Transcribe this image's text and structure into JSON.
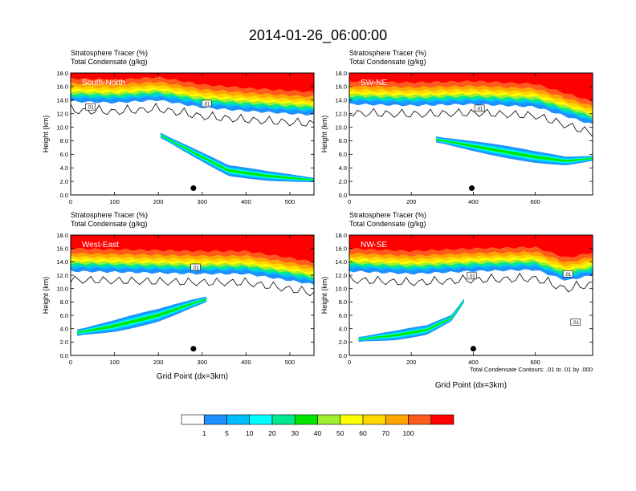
{
  "figure": {
    "title": "2014-01-26_06:00:00",
    "contour_note": "Total Condensate Contours: .01 to .01 by .000"
  },
  "colors": {
    "levels": [
      "#ffffff",
      "#1e90ff",
      "#00bfff",
      "#00ffff",
      "#00e890",
      "#00e600",
      "#a0ee30",
      "#ffff00",
      "#ffd700",
      "#ffa500",
      "#ff5a1e",
      "#ff0000"
    ],
    "contour": "#000000"
  },
  "colorbar": {
    "labels": [
      "1",
      "5",
      "10",
      "20",
      "30",
      "40",
      "50",
      "60",
      "70",
      "100"
    ]
  },
  "chart_data": [
    {
      "type": "heatmap",
      "panel": "South-North",
      "header1": "Stratosphere Tracer   (%)",
      "header2": "Total Condensate   (g/kg)",
      "ylabel": "Height (km)",
      "xlabel": "",
      "xlim": [
        0,
        555
      ],
      "ylim": [
        0,
        18
      ],
      "xticks": [
        0,
        100,
        200,
        300,
        400,
        500
      ],
      "yticks": [
        0,
        2,
        4,
        6,
        8,
        10,
        12,
        14,
        16,
        18
      ],
      "contour_labels": [
        {
          "x": 45,
          "y": 13.0,
          "text": ".01"
        },
        {
          "x": 310,
          "y": 13.5,
          "text": ".01"
        }
      ],
      "marker": {
        "x": 280,
        "y": 1.0
      },
      "plume": [
        {
          "x": 205,
          "y": 8.8
        },
        {
          "x": 300,
          "y": 5.6
        },
        {
          "x": 360,
          "y": 3.6
        },
        {
          "x": 450,
          "y": 2.8
        },
        {
          "x": 555,
          "y": 2.2
        }
      ],
      "plume_width_km": 1.6,
      "tracer_base": [
        {
          "x": 0,
          "y": 14.6
        },
        {
          "x": 100,
          "y": 14.4
        },
        {
          "x": 200,
          "y": 14.8
        },
        {
          "x": 300,
          "y": 13.7
        },
        {
          "x": 400,
          "y": 13.2
        },
        {
          "x": 500,
          "y": 12.8
        },
        {
          "x": 555,
          "y": 12.6
        }
      ]
    },
    {
      "type": "heatmap",
      "panel": "SW-NE",
      "header1": "Stratosphere Tracer   (%)",
      "header2": "Total Condensate   (g/kg)",
      "ylabel": "Height (km)",
      "xlabel": "",
      "xlim": [
        0,
        785
      ],
      "ylim": [
        0,
        18
      ],
      "xticks": [
        0,
        200,
        400,
        600
      ],
      "yticks": [
        0,
        2,
        4,
        6,
        8,
        10,
        12,
        14,
        16,
        18
      ],
      "contour_labels": [
        {
          "x": 420,
          "y": 12.8,
          "text": ".01"
        }
      ],
      "marker": {
        "x": 395,
        "y": 1.0
      },
      "plume": [
        {
          "x": 280,
          "y": 8.2
        },
        {
          "x": 450,
          "y": 6.8
        },
        {
          "x": 600,
          "y": 5.6
        },
        {
          "x": 700,
          "y": 5.0
        },
        {
          "x": 785,
          "y": 5.4
        }
      ],
      "plume_width_km": 1.8,
      "tracer_base": [
        {
          "x": 0,
          "y": 14.2
        },
        {
          "x": 200,
          "y": 14.0
        },
        {
          "x": 400,
          "y": 14.2
        },
        {
          "x": 600,
          "y": 13.8
        },
        {
          "x": 700,
          "y": 12.4
        },
        {
          "x": 785,
          "y": 11.2
        }
      ]
    },
    {
      "type": "heatmap",
      "panel": "West-East",
      "header1": "Stratosphere Tracer   (%)",
      "header2": "Total Condensate   (g/kg)",
      "ylabel": "Height (km)",
      "xlabel": "Grid Point (dx=3km)",
      "xlim": [
        0,
        555
      ],
      "ylim": [
        0,
        18
      ],
      "xticks": [
        0,
        100,
        200,
        300,
        400,
        500
      ],
      "yticks": [
        0,
        2,
        4,
        6,
        8,
        10,
        12,
        14,
        16,
        18
      ],
      "contour_labels": [
        {
          "x": 285,
          "y": 13.2,
          "text": ".01"
        }
      ],
      "marker": {
        "x": 280,
        "y": 1.0
      },
      "plume": [
        {
          "x": 15,
          "y": 3.4
        },
        {
          "x": 100,
          "y": 4.4
        },
        {
          "x": 200,
          "y": 6.0
        },
        {
          "x": 280,
          "y": 7.8
        },
        {
          "x": 310,
          "y": 8.4
        }
      ],
      "plume_width_km": 2.0,
      "tracer_base": [
        {
          "x": 0,
          "y": 13.4
        },
        {
          "x": 150,
          "y": 13.2
        },
        {
          "x": 300,
          "y": 13.0
        },
        {
          "x": 400,
          "y": 13.0
        },
        {
          "x": 500,
          "y": 12.0
        },
        {
          "x": 555,
          "y": 11.4
        }
      ]
    },
    {
      "type": "heatmap",
      "panel": "NW-SE",
      "header1": "Stratosphere Tracer   (%)",
      "header2": "Total Condensate   (g/kg)",
      "ylabel": "Height (km)",
      "xlabel": "Grid Point (dx=3km)",
      "xlim": [
        0,
        785
      ],
      "ylim": [
        0,
        18
      ],
      "xticks": [
        0,
        200,
        400,
        600
      ],
      "yticks": [
        0,
        2,
        4,
        6,
        8,
        10,
        12,
        14,
        16,
        18
      ],
      "contour_labels": [
        {
          "x": 395,
          "y": 11.9,
          "text": ".01"
        },
        {
          "x": 705,
          "y": 12.2,
          "text": ".01"
        },
        {
          "x": 730,
          "y": 5.0,
          "text": ".01"
        }
      ],
      "marker": {
        "x": 400,
        "y": 1.0
      },
      "plume": [
        {
          "x": 30,
          "y": 2.4
        },
        {
          "x": 150,
          "y": 3.0
        },
        {
          "x": 250,
          "y": 3.8
        },
        {
          "x": 330,
          "y": 5.6
        },
        {
          "x": 370,
          "y": 8.2
        }
      ],
      "plume_width_km": 1.5,
      "tracer_base": [
        {
          "x": 0,
          "y": 13.4
        },
        {
          "x": 200,
          "y": 13.0
        },
        {
          "x": 400,
          "y": 13.4
        },
        {
          "x": 600,
          "y": 13.6
        },
        {
          "x": 700,
          "y": 12.0
        },
        {
          "x": 785,
          "y": 12.8
        }
      ]
    }
  ]
}
